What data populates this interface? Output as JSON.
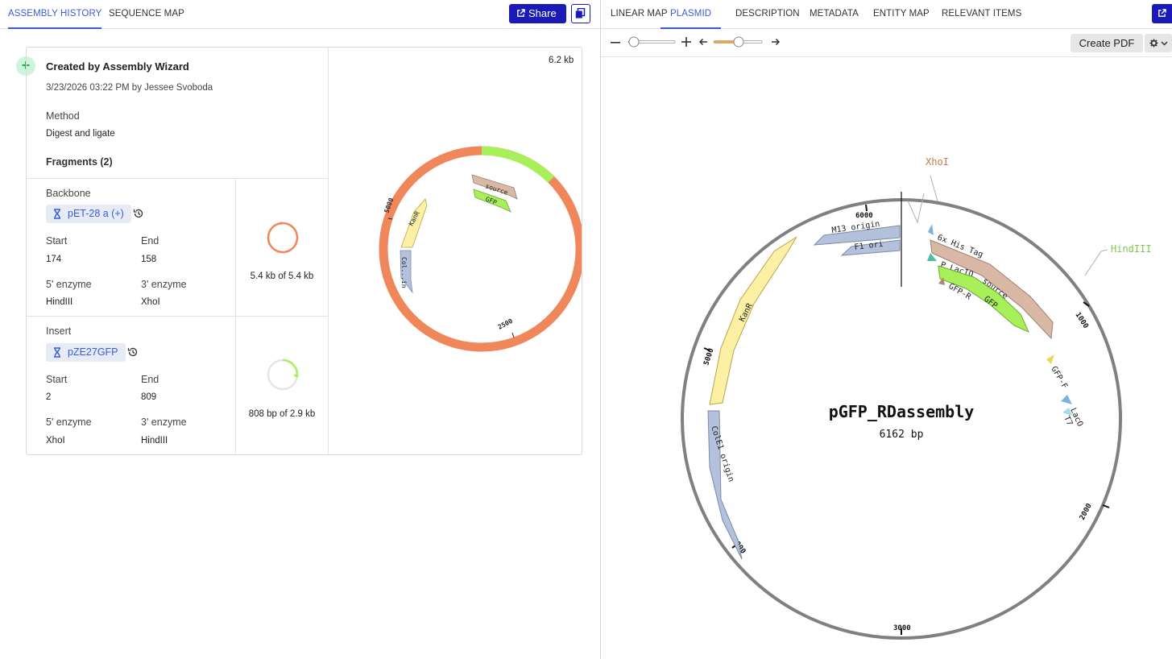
{
  "left_tabs": [
    {
      "label": "ASSEMBLY HISTORY",
      "active": true
    },
    {
      "label": "SEQUENCE MAP",
      "active": false
    }
  ],
  "share_label": "Share",
  "assembly": {
    "title": "Created by Assembly Wizard",
    "date": "3/23/2026 03:22 PM",
    "by_label": "by",
    "author": "Jessee Svoboda",
    "method_label": "Method",
    "method_value": "Digest and ligate",
    "fragments_label": "Fragments (2)",
    "total_size": "6.2 kb",
    "fragments": [
      {
        "role": "Backbone",
        "name": "pET-28 a (+)",
        "start_label": "Start",
        "start": "174",
        "end_label": "End",
        "end": "158",
        "enz5_label": "5' enzyme",
        "enz5": "HindIII",
        "enz3_label": "3' enzyme",
        "enz3": "XhoI",
        "coverage": "5.4 kb of 5.4 kb",
        "fraction": 1.0,
        "color": "#f0875a"
      },
      {
        "role": "Insert",
        "name": "pZE27GFP",
        "start_label": "Start",
        "start": "2",
        "end_label": "End",
        "end": "809",
        "enz5_label": "5' enzyme",
        "enz5": "XhoI",
        "enz3_label": "3' enzyme",
        "enz3": "HindIII",
        "coverage": "808 bp of 2.9 kb",
        "fraction": 0.28,
        "color": "#a8f05a"
      }
    ],
    "mini_map": {
      "features": [
        "source",
        "GFP",
        "KanR",
        "Col...in"
      ],
      "ticks": [
        "5000",
        "2500"
      ]
    }
  },
  "right_tabs": [
    {
      "label": "LINEAR MAP",
      "active": false
    },
    {
      "label": "PLASMID",
      "active": true
    },
    {
      "label": "DESCRIPTION",
      "active": false
    },
    {
      "label": "METADATA",
      "active": false
    },
    {
      "label": "ENTITY MAP",
      "active": false
    },
    {
      "label": "RELEVANT ITEMS",
      "active": false
    }
  ],
  "create_pdf_label": "Create PDF",
  "plasmid": {
    "name": "pGFP_RDassembly",
    "length": "6162 bp",
    "sites": [
      "XhoI",
      "HindIII"
    ],
    "features": [
      "M13 origin",
      "F1 ori",
      "KanR",
      "ColE1 origin",
      "6x His Tag",
      "source",
      "P_LacIQ",
      "GFP",
      "GFP-R",
      "GFP-F",
      "LacO",
      "T7"
    ],
    "ticks": [
      "6000",
      "1000",
      "2000",
      "3000",
      "4000",
      "5000"
    ]
  },
  "colors": {
    "accent": "#3b5bdb",
    "button": "#1a1ab8",
    "backbone": "#f0875a",
    "insert": "#a8f05a",
    "xhoi": "#c8784a",
    "hindiii": "#7ec850"
  }
}
